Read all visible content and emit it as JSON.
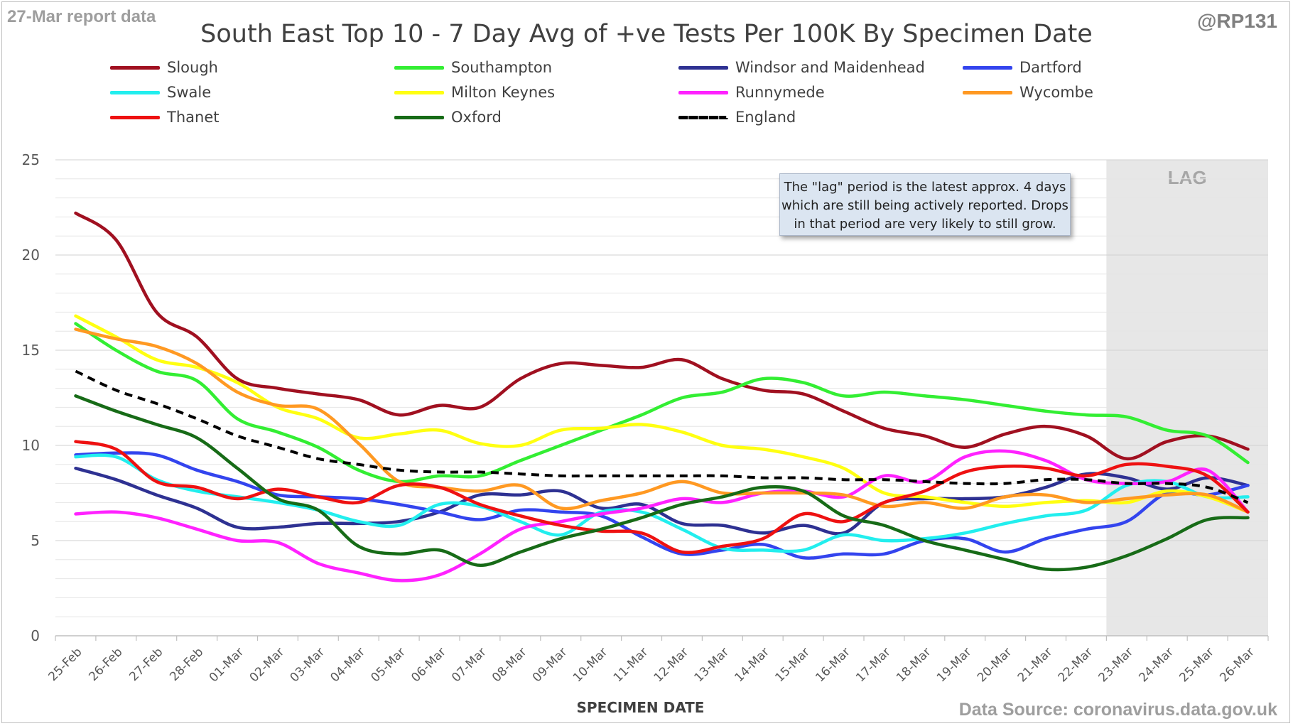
{
  "header": {
    "report_label": "27-Mar report data",
    "handle": "@RP131",
    "source": "Data Source: coronavirus.data.gov.uk"
  },
  "annotation": {
    "lag_label": "LAG",
    "note": "The \"lag\" period is the latest approx. 4 days which are still being actively reported.  Drops in that period are very likely to still grow."
  },
  "chart_data": {
    "type": "line",
    "title": "South East Top 10 - 7 Day Avg of +ve Tests Per 100K By Specimen Date",
    "xlabel": "SPECIMEN DATE",
    "ylabel": "",
    "ylim": [
      0,
      25
    ],
    "yticks": [
      0,
      5,
      10,
      15,
      20,
      25
    ],
    "grid": true,
    "legend": "top",
    "lag_start": "23-Mar",
    "categories": [
      "25-Feb",
      "26-Feb",
      "27-Feb",
      "28-Feb",
      "01-Mar",
      "02-Mar",
      "03-Mar",
      "04-Mar",
      "05-Mar",
      "06-Mar",
      "07-Mar",
      "08-Mar",
      "09-Mar",
      "10-Mar",
      "11-Mar",
      "12-Mar",
      "13-Mar",
      "14-Mar",
      "15-Mar",
      "16-Mar",
      "17-Mar",
      "18-Mar",
      "19-Mar",
      "20-Mar",
      "21-Mar",
      "22-Mar",
      "23-Mar",
      "24-Mar",
      "25-Mar",
      "26-Mar"
    ],
    "series": [
      {
        "name": "Slough",
        "color": "#a01020",
        "dash": false,
        "values": [
          22.2,
          20.8,
          17.0,
          15.7,
          13.5,
          13.0,
          12.7,
          12.4,
          11.6,
          12.1,
          12.0,
          13.5,
          14.3,
          14.2,
          14.1,
          14.5,
          13.5,
          12.9,
          12.7,
          11.8,
          10.9,
          10.5,
          9.9,
          10.6,
          11.0,
          10.5,
          9.3,
          10.2,
          10.5,
          9.8
        ]
      },
      {
        "name": "Southampton",
        "color": "#33ee33",
        "dash": false,
        "values": [
          16.4,
          15.0,
          13.9,
          13.4,
          11.4,
          10.7,
          9.9,
          8.7,
          8.1,
          8.4,
          8.4,
          9.2,
          10.0,
          10.8,
          11.6,
          12.5,
          12.8,
          13.5,
          13.3,
          12.6,
          12.8,
          12.6,
          12.4,
          12.1,
          11.8,
          11.6,
          11.5,
          10.8,
          10.5,
          9.1
        ]
      },
      {
        "name": "Windsor and Maidenhead",
        "color": "#2e3192",
        "dash": false,
        "values": [
          8.8,
          8.2,
          7.4,
          6.7,
          5.7,
          5.7,
          5.9,
          5.9,
          6.0,
          6.5,
          7.4,
          7.4,
          7.6,
          6.7,
          6.9,
          5.9,
          5.8,
          5.4,
          5.8,
          5.4,
          7.0,
          7.2,
          7.2,
          7.3,
          7.8,
          8.5,
          8.3,
          7.7,
          8.3,
          7.9
        ]
      },
      {
        "name": "Dartford",
        "color": "#3344ee",
        "dash": false,
        "values": [
          9.5,
          9.6,
          9.5,
          8.7,
          8.1,
          7.4,
          7.3,
          7.2,
          6.9,
          6.5,
          6.1,
          6.6,
          6.5,
          6.3,
          5.2,
          4.3,
          4.5,
          4.8,
          4.1,
          4.3,
          4.3,
          5.0,
          5.1,
          4.4,
          5.1,
          5.6,
          6.0,
          7.5,
          7.4,
          7.9
        ]
      },
      {
        "name": "Swale",
        "color": "#22eeee",
        "dash": false,
        "values": [
          9.4,
          9.4,
          8.2,
          7.6,
          7.3,
          7.0,
          6.6,
          6.0,
          5.8,
          6.9,
          6.8,
          6.0,
          5.3,
          6.5,
          6.5,
          5.6,
          4.6,
          4.5,
          4.5,
          5.3,
          5.0,
          5.1,
          5.4,
          5.9,
          6.3,
          6.6,
          7.9,
          8.1,
          7.3,
          7.3
        ]
      },
      {
        "name": "Milton Keynes",
        "color": "#ffff11",
        "dash": false,
        "values": [
          16.8,
          15.7,
          14.5,
          14.1,
          13.3,
          12.0,
          11.4,
          10.4,
          10.6,
          10.8,
          10.1,
          10.0,
          10.8,
          10.9,
          11.1,
          10.7,
          10.0,
          9.8,
          9.4,
          8.8,
          7.5,
          7.3,
          7.0,
          6.8,
          7.0,
          7.1,
          7.0,
          7.6,
          7.3,
          6.5
        ]
      },
      {
        "name": "Runnymede",
        "color": "#ff22ff",
        "dash": false,
        "values": [
          6.4,
          6.5,
          6.2,
          5.6,
          5.0,
          4.9,
          3.8,
          3.3,
          2.9,
          3.2,
          4.3,
          5.6,
          6.0,
          6.4,
          6.7,
          7.2,
          7.0,
          7.5,
          7.6,
          7.3,
          8.4,
          8.1,
          9.4,
          9.7,
          9.2,
          8.2,
          8.0,
          8.1,
          8.7,
          6.5
        ]
      },
      {
        "name": "Wycombe",
        "color": "#ff9922",
        "dash": false,
        "values": [
          16.1,
          15.6,
          15.2,
          14.3,
          12.8,
          12.1,
          11.9,
          10.1,
          8.1,
          7.8,
          7.6,
          7.9,
          6.7,
          7.1,
          7.5,
          8.1,
          7.5,
          7.5,
          7.5,
          7.4,
          6.8,
          7.0,
          6.7,
          7.3,
          7.4,
          7.0,
          7.2,
          7.4,
          7.4,
          6.5
        ]
      },
      {
        "name": "Thanet",
        "color": "#ee1111",
        "dash": false,
        "values": [
          10.2,
          9.8,
          8.1,
          7.8,
          7.2,
          7.7,
          7.3,
          7.0,
          7.9,
          7.8,
          6.9,
          6.3,
          5.8,
          5.5,
          5.4,
          4.4,
          4.7,
          5.1,
          6.4,
          6.0,
          7.0,
          7.6,
          8.6,
          8.9,
          8.8,
          8.4,
          9.0,
          8.9,
          8.4,
          6.5
        ]
      },
      {
        "name": "Oxford",
        "color": "#176b17",
        "dash": false,
        "values": [
          12.6,
          11.8,
          11.1,
          10.4,
          8.8,
          7.2,
          6.6,
          4.7,
          4.3,
          4.5,
          3.7,
          4.4,
          5.1,
          5.6,
          6.2,
          6.9,
          7.3,
          7.8,
          7.6,
          6.3,
          5.8,
          5.0,
          4.5,
          4.0,
          3.5,
          3.6,
          4.2,
          5.1,
          6.1,
          6.2
        ]
      },
      {
        "name": "England",
        "color": "#000000",
        "dash": true,
        "values": [
          13.9,
          12.9,
          12.2,
          11.4,
          10.5,
          9.9,
          9.3,
          9.0,
          8.7,
          8.6,
          8.6,
          8.5,
          8.4,
          8.4,
          8.4,
          8.4,
          8.4,
          8.3,
          8.3,
          8.2,
          8.2,
          8.1,
          8.0,
          8.0,
          8.2,
          8.2,
          8.0,
          8.0,
          7.8,
          7.0
        ]
      }
    ]
  }
}
